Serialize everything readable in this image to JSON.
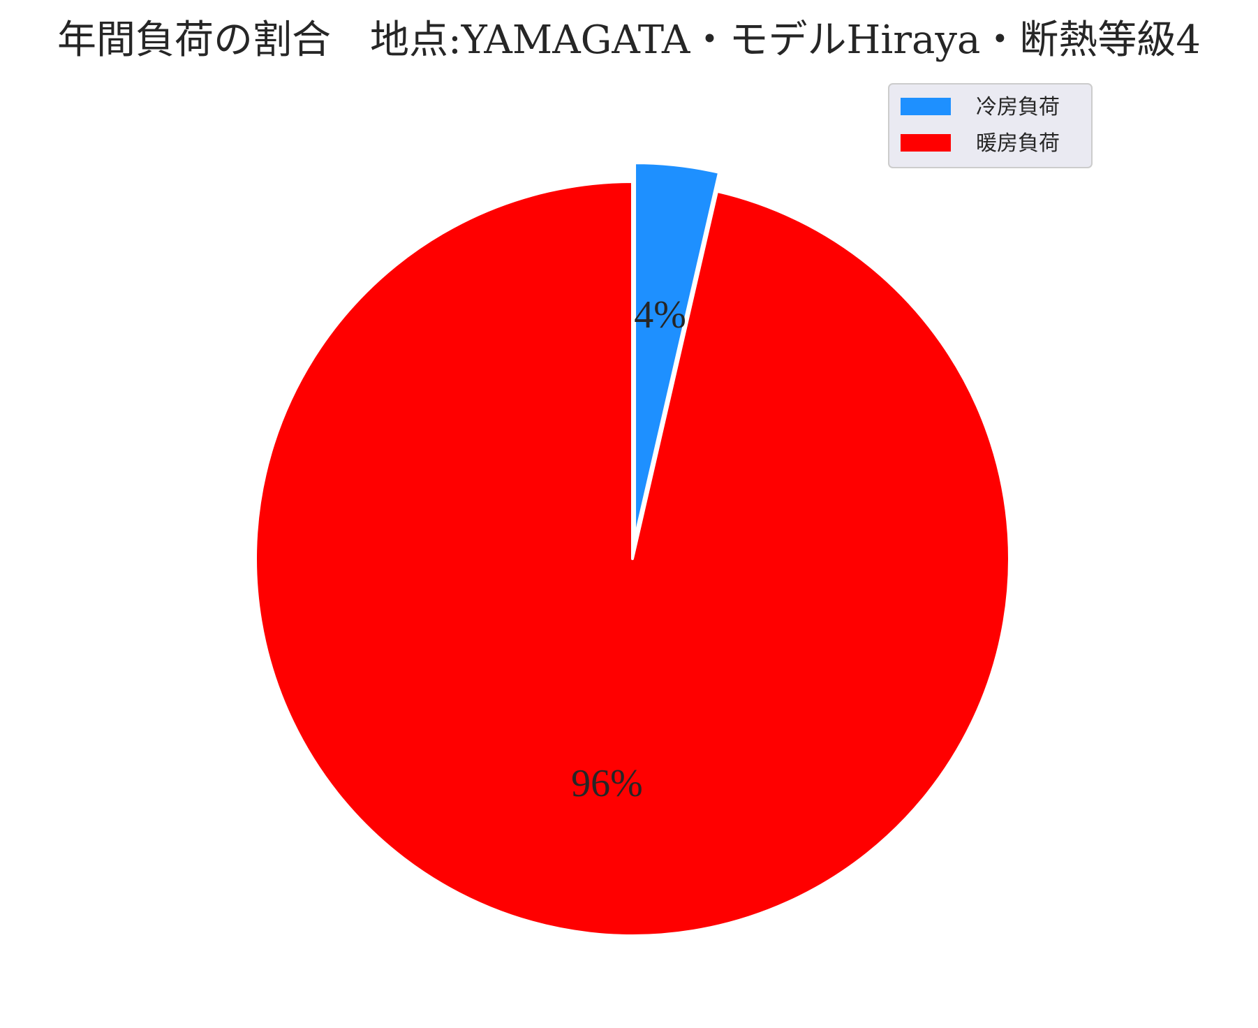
{
  "chart_data": {
    "type": "pie",
    "title": "年間負荷の割合　地点:YAMAGATA・モデルHiraya・断熱等級4",
    "start_angle_deg": 90,
    "direction": "clockwise",
    "explode": [
      0.05,
      0
    ],
    "slices": [
      {
        "label": "冷房負荷",
        "value": 3.6,
        "pct_label": "4%",
        "color": "#1e90ff"
      },
      {
        "label": "暖房負荷",
        "value": 96.4,
        "pct_label": "96%",
        "color": "#ff0000"
      }
    ],
    "legend": {
      "position": "upper-right",
      "entries": [
        "冷房負荷",
        "暖房負荷"
      ]
    },
    "wedge_edge_color": "#ffffff"
  }
}
